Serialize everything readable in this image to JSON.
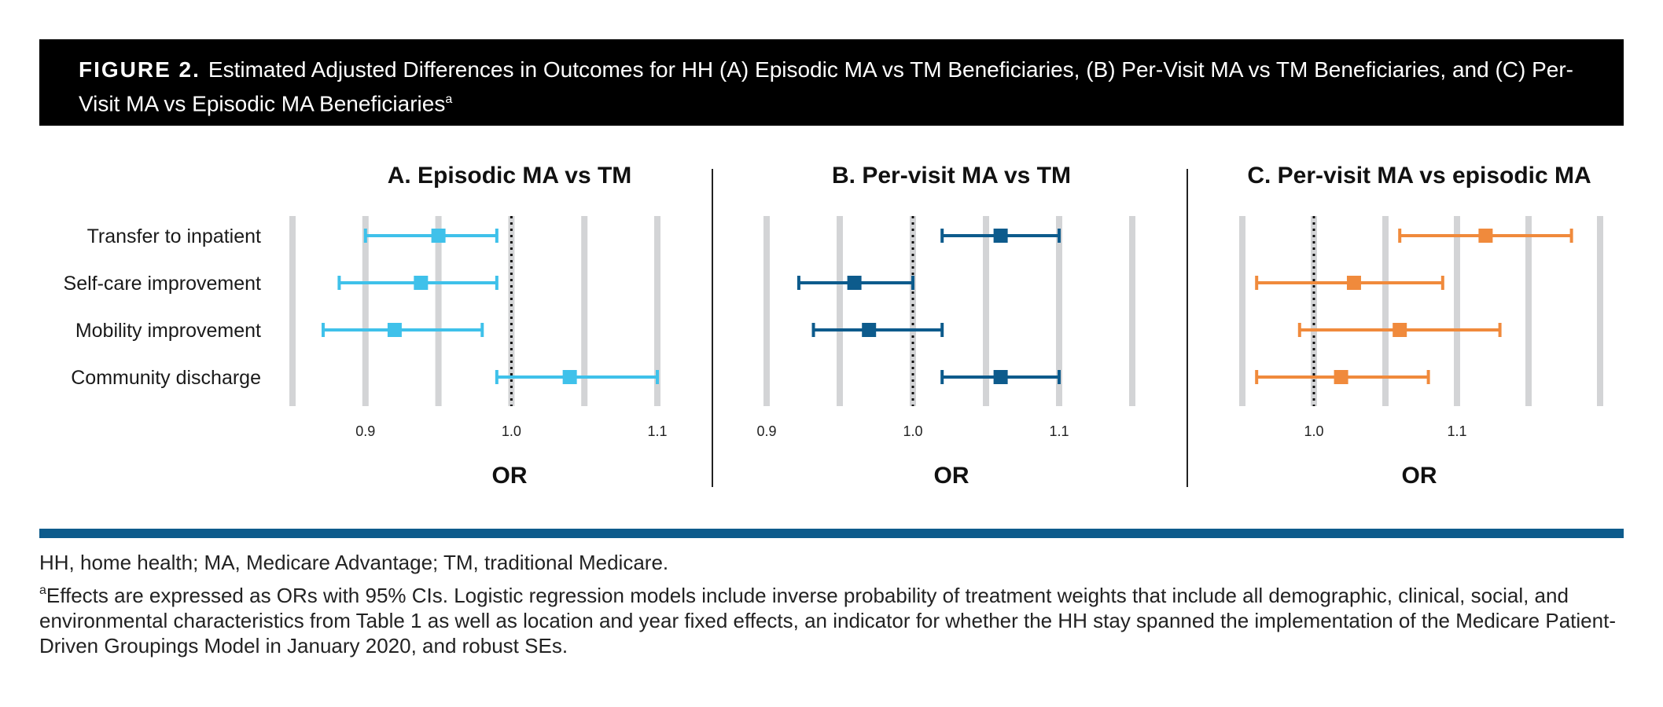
{
  "header": {
    "figure_label": "FIGURE 2.",
    "title": "Estimated Adjusted Differences in Outcomes for HH (A) Episodic MA vs TM Beneficiaries, (B) Per-Visit MA vs TM Beneficiaries, and (C) Per-Visit MA vs Episodic MA Beneficiaries",
    "superscript": "a"
  },
  "chart_data": [
    {
      "type": "forest",
      "title": "A. Episodic MA vs TM",
      "xlabel": "OR",
      "xlim": [
        0.85,
        1.1
      ],
      "reference_line": 1.0,
      "x_ticks": [
        0.9,
        1.0,
        1.1
      ],
      "tick_labels": [
        "0.9",
        "1.0",
        "1.1"
      ],
      "color": "#3fc1ea",
      "categories": [
        "Transfer to inpatient",
        "Self-care improvement",
        "Mobility improvement",
        "Community discharge"
      ],
      "estimates": [
        0.95,
        0.938,
        0.92,
        1.04
      ],
      "ci_low": [
        0.9,
        0.882,
        0.871,
        0.99
      ],
      "ci_high": [
        0.99,
        0.99,
        0.98,
        1.1
      ]
    },
    {
      "type": "forest",
      "title": "B. Per-visit MA vs TM",
      "xlabel": "OR",
      "xlim": [
        0.9,
        1.15
      ],
      "reference_line": 1.0,
      "x_ticks": [
        0.9,
        1.0,
        1.1
      ],
      "tick_labels": [
        "0.9",
        "1.0",
        "1.1"
      ],
      "color": "#0d5b8c",
      "categories": [
        "Transfer to inpatient",
        "Self-care improvement",
        "Mobility improvement",
        "Community discharge"
      ],
      "estimates": [
        1.06,
        0.96,
        0.97,
        1.06
      ],
      "ci_low": [
        1.02,
        0.922,
        0.932,
        1.02
      ],
      "ci_high": [
        1.1,
        1.0,
        1.02,
        1.1
      ]
    },
    {
      "type": "forest",
      "title": "C. Per-visit MA vs episodic MA",
      "xlabel": "OR",
      "xlim": [
        0.95,
        1.2
      ],
      "reference_line": 1.0,
      "x_ticks": [
        1.0,
        1.1
      ],
      "tick_labels": [
        "1.0",
        "1.1"
      ],
      "color": "#f08a3c",
      "categories": [
        "Transfer to inpatient",
        "Self-care improvement",
        "Mobility improvement",
        "Community discharge"
      ],
      "estimates": [
        1.12,
        1.028,
        1.06,
        1.019
      ],
      "ci_low": [
        1.06,
        0.96,
        0.99,
        0.96
      ],
      "ci_high": [
        1.18,
        1.09,
        1.13,
        1.08
      ]
    }
  ],
  "footnotes": {
    "abbreviations": "HH, home health; MA, Medicare Advantage; TM, traditional Medicare.",
    "note_mark": "a",
    "note": "Effects are expressed as ORs with 95% CIs. Logistic regression models include inverse probability of treatment weights that include all demographic, clinical, social, and environmental characteristics from Table 1 as well as location and year fixed effects, an indicator for whether the HH stay spanned the implementation of the Medicare Patient-Driven Groupings Model in January 2020, and robust SEs."
  }
}
